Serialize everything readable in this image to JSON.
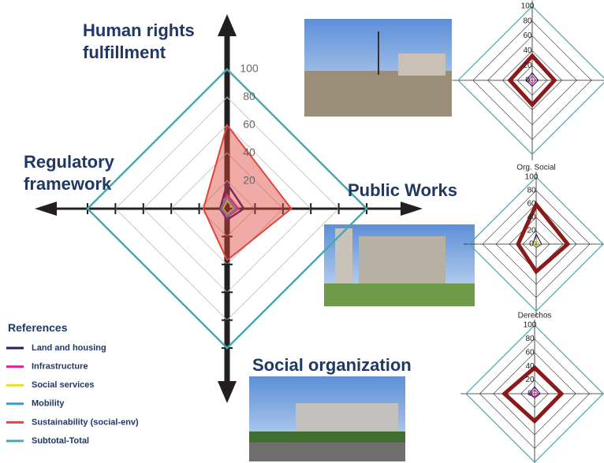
{
  "chart_data": [
    {
      "type": "radar",
      "categories": [
        "Human rights fulfillment",
        "Public Works",
        "Social organization",
        "Regulatory framework"
      ],
      "rlim": [
        0,
        100
      ],
      "rticks": [
        20,
        40,
        60,
        80,
        100
      ],
      "grid": true,
      "legend_title": "References",
      "series": [
        {
          "name": "Land and housing",
          "color": "#2b1a6b",
          "values": [
            18,
            12,
            8,
            5
          ]
        },
        {
          "name": "Infrastructure",
          "color": "#e0209c",
          "values": [
            10,
            8,
            6,
            4
          ]
        },
        {
          "name": "Social services",
          "color": "#e6e020",
          "values": [
            6,
            5,
            4,
            3
          ]
        },
        {
          "name": "Mobility",
          "color": "#2a9fe0",
          "values": [
            8,
            6,
            5,
            4
          ]
        },
        {
          "name": "Sustainability (social-env)",
          "color": "#e0453a",
          "values": [
            60,
            46,
            37,
            17
          ],
          "filled": true
        },
        {
          "name": "Subtotal-Total",
          "color": "#4aa8b0",
          "values": [
            100,
            100,
            100,
            100
          ]
        }
      ]
    },
    {
      "type": "radar",
      "rlim": [
        0,
        100
      ],
      "rticks": [
        0,
        20,
        40,
        60,
        80,
        100
      ],
      "grid": true,
      "series": [
        {
          "color": "#4aa8b0",
          "values": [
            100,
            100,
            100,
            100
          ]
        },
        {
          "color": "#8b1a1a",
          "values": [
            33,
            30,
            33,
            30
          ]
        },
        {
          "color": "#2b1a6b",
          "values": [
            10,
            8,
            8,
            8
          ]
        },
        {
          "color": "#e0209c",
          "values": [
            6,
            5,
            5,
            5
          ]
        }
      ]
    },
    {
      "type": "radar",
      "title": "Org. Social",
      "rlim": [
        0,
        100
      ],
      "rticks": [
        0,
        20,
        40,
        60,
        80,
        100
      ],
      "grid": true,
      "series": [
        {
          "color": "#4aa8b0",
          "values": [
            100,
            100,
            100,
            100
          ]
        },
        {
          "color": "#8b1a1a",
          "values": [
            59,
            47,
            41,
            27
          ]
        },
        {
          "color": "#2b1a6b",
          "values": [
            15,
            8,
            5,
            5
          ]
        },
        {
          "color": "#e6e020",
          "values": [
            6,
            6,
            4,
            4
          ]
        }
      ]
    },
    {
      "type": "radar",
      "title": "Derechos",
      "rlim": [
        0,
        100
      ],
      "rticks": [
        0,
        20,
        40,
        60,
        80,
        100
      ],
      "grid": true,
      "series": [
        {
          "color": "#4aa8b0",
          "values": [
            100,
            100,
            100,
            100
          ]
        },
        {
          "color": "#8b1a1a",
          "values": [
            38,
            39,
            40,
            44
          ]
        },
        {
          "color": "#2b1a6b",
          "values": [
            10,
            8,
            6,
            8
          ]
        },
        {
          "color": "#e0209c",
          "values": [
            6,
            5,
            5,
            5
          ]
        }
      ]
    }
  ]
}
